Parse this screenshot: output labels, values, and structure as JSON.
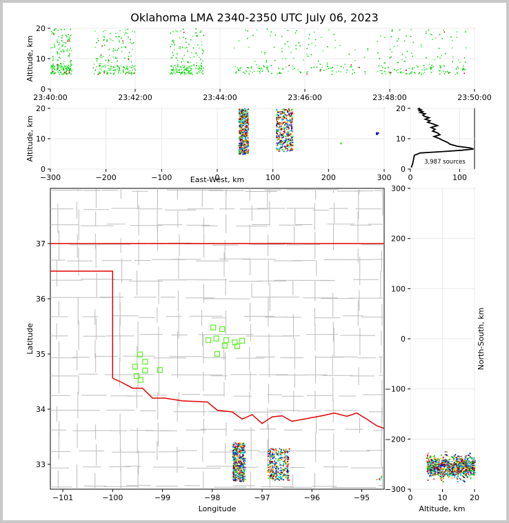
{
  "figure": {
    "title": "Oklahoma LMA 2340-2350 UTC July 06, 2023"
  },
  "chart_data": [
    {
      "id": "time-altitude",
      "type": "scatter",
      "title": "",
      "xlabel": "",
      "ylabel": "Altitude, km",
      "xlim": [
        "23:40:00",
        "23:50:00"
      ],
      "ylim": [
        0,
        20
      ],
      "xticks": [
        "23:40:00",
        "23:42:00",
        "23:44:00",
        "23:46:00",
        "23:48:00",
        "23:50:00"
      ],
      "yticks": [
        "0",
        "10",
        "20"
      ],
      "grid": true,
      "note_colors": [
        "#00d000",
        "#22ee22",
        "#c00000"
      ]
    },
    {
      "id": "eastwest-altitude",
      "type": "scatter",
      "xlabel": "East-West, km",
      "ylabel": "Altitude, km",
      "xlim": [
        -300,
        300
      ],
      "ylim": [
        0,
        20
      ],
      "xticks": [
        "−300",
        "−200",
        "−100",
        "0",
        "100",
        "200",
        "300"
      ],
      "yticks": [
        "0",
        "10",
        "20"
      ],
      "grid": true,
      "clusters": [
        {
          "x_min": 38,
          "x_max": 55,
          "y_min": 5,
          "y_max": 20
        },
        {
          "x_min": 105,
          "x_max": 135,
          "y_min": 6,
          "y_max": 20
        },
        {
          "x_min": 220,
          "x_max": 222,
          "y_min": 8.5,
          "y_max": 9
        }
      ]
    },
    {
      "id": "altitude-histogram",
      "type": "line",
      "xlim": [
        0,
        130
      ],
      "ylim": [
        0,
        20
      ],
      "xticks": [
        "0",
        "100"
      ],
      "yticks": [
        "0",
        "10",
        "20"
      ],
      "annotation": "3,987 sources",
      "x": [
        2,
        5,
        8,
        20,
        50,
        80,
        105,
        128,
        120,
        95,
        80,
        75,
        65,
        58,
        48,
        60,
        55,
        45,
        50,
        42,
        55,
        45,
        35,
        40,
        30,
        38,
        28,
        25,
        30,
        20,
        25,
        18,
        22,
        15,
        20
      ],
      "y": [
        0.5,
        2,
        4.5,
        5.3,
        5.6,
        5.9,
        6.2,
        6.6,
        7.0,
        7.5,
        8.2,
        8.8,
        9.5,
        10.1,
        10.7,
        11.3,
        11.9,
        12.5,
        13.1,
        13.7,
        14.3,
        14.9,
        15.4,
        15.9,
        16.4,
        16.9,
        17.4,
        17.8,
        18.2,
        18.6,
        18.9,
        19.2,
        19.5,
        19.8,
        20
      ]
    },
    {
      "id": "plan-view",
      "type": "scatter",
      "xlabel": "Longitude",
      "ylabel": "Latitude",
      "xlim": [
        -101.25,
        -94.55
      ],
      "ylim": [
        32.55,
        38.0
      ],
      "xticks": [
        "−101",
        "−100",
        "−99",
        "−98",
        "−97",
        "−96",
        "−95"
      ],
      "yticks": [
        "33",
        "34",
        "35",
        "36",
        "37"
      ],
      "boundary_color": "#e00000",
      "county_color": "#bbbbbb",
      "stations": [
        {
          "lon": -99.45,
          "lat": 34.99
        },
        {
          "lon": -99.35,
          "lat": 34.86
        },
        {
          "lon": -99.55,
          "lat": 34.77
        },
        {
          "lon": -99.35,
          "lat": 34.7
        },
        {
          "lon": -99.05,
          "lat": 34.71
        },
        {
          "lon": -99.52,
          "lat": 34.6
        },
        {
          "lon": -99.44,
          "lat": 34.53
        },
        {
          "lon": -97.98,
          "lat": 35.48
        },
        {
          "lon": -97.8,
          "lat": 35.45
        },
        {
          "lon": -97.92,
          "lat": 35.28
        },
        {
          "lon": -98.08,
          "lat": 35.25
        },
        {
          "lon": -97.72,
          "lat": 35.25
        },
        {
          "lon": -97.55,
          "lat": 35.21
        },
        {
          "lon": -97.4,
          "lat": 35.24
        },
        {
          "lon": -97.75,
          "lat": 35.15
        },
        {
          "lon": -97.5,
          "lat": 35.14
        },
        {
          "lon": -97.9,
          "lat": 35.0
        }
      ],
      "clusters": [
        {
          "lon_min": -97.6,
          "lon_max": -97.35,
          "lat_min": 32.7,
          "lat_max": 33.4
        },
        {
          "lon_min": -96.9,
          "lon_max": -96.45,
          "lat_min": 32.72,
          "lat_max": 33.3
        },
        {
          "lon_min": -94.75,
          "lon_max": -94.6,
          "lat_min": 32.72,
          "lat_max": 32.82
        }
      ]
    },
    {
      "id": "altitude-northsouth",
      "type": "scatter",
      "xlabel": "Altitude, km",
      "ylabel": "North-South, km",
      "xlim": [
        0,
        20
      ],
      "ylim": [
        -300,
        300
      ],
      "xticks": [
        "0",
        "10",
        "20"
      ],
      "yticks": [
        "−300",
        "−200",
        "−100",
        "0",
        "100",
        "200",
        "300"
      ],
      "grid": true,
      "clusters": [
        {
          "x_min": 5,
          "x_max": 20,
          "y_min": -290,
          "y_max": -225
        }
      ]
    }
  ],
  "palette": [
    "#0000c0",
    "#0050ff",
    "#00a0ff",
    "#00d8d8",
    "#00c000",
    "#40e040",
    "#e0e000",
    "#ff8000",
    "#ff0000",
    "#c00000",
    "#600000"
  ]
}
